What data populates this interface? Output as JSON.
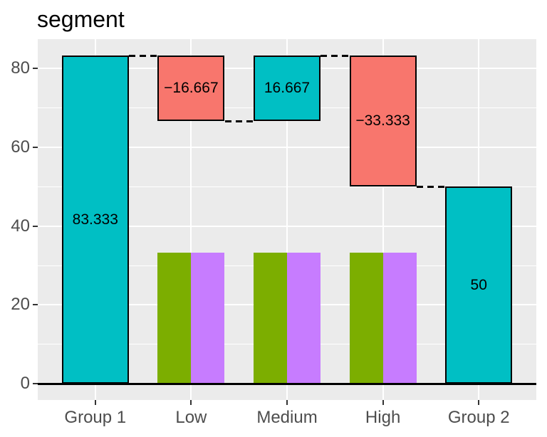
{
  "chart_data": {
    "type": "bar",
    "subtype": "waterfall",
    "title": "segment",
    "xlabel": "",
    "ylabel": "",
    "categories": [
      "Group 1",
      "Low",
      "Medium",
      "High",
      "Group 2"
    ],
    "x_positions": [
      1,
      2,
      3,
      4,
      5
    ],
    "xlim": [
      0.4,
      5.6
    ],
    "ylim": [
      -4.1667,
      87.5
    ],
    "yticks_major": [
      0,
      20,
      40,
      60,
      80
    ],
    "yticks_minor": [
      10,
      30,
      50,
      70
    ],
    "grid": "on",
    "legend": "none",
    "bar_width": 0.7,
    "zero_line": 0,
    "colors": {
      "increase_total": "#00BFC4",
      "decrease": "#F8766D",
      "group_a": "#7CAE00",
      "group_b": "#C77CFF",
      "panel_bg": "#EBEBEB",
      "grid": "#FFFFFF",
      "axis_text": "#4D4D4D",
      "tick": "#333333",
      "bar_border": "#000000",
      "zero_line": "#000000",
      "label_text": "#000000"
    },
    "waterfall_bars": [
      {
        "category": "Group 1",
        "x": 1,
        "from": 0,
        "to": 83.333,
        "value": 83.333,
        "label": "83.333",
        "color_key": "increase_total"
      },
      {
        "category": "Low",
        "x": 2,
        "from": 66.667,
        "to": 83.333,
        "value": -16.667,
        "label": "−16.667",
        "color_key": "decrease"
      },
      {
        "category": "Medium",
        "x": 3,
        "from": 66.667,
        "to": 83.333,
        "value": 16.667,
        "label": "16.667",
        "color_key": "increase_total"
      },
      {
        "category": "High",
        "x": 4,
        "from": 50,
        "to": 83.333,
        "value": -33.333,
        "label": "−33.333",
        "color_key": "decrease"
      },
      {
        "category": "Group 2",
        "x": 5,
        "from": 0,
        "to": 50,
        "value": 50,
        "label": "50",
        "color_key": "increase_total"
      }
    ],
    "dodged_bars": [
      {
        "category": "Low",
        "x": 2,
        "values": [
          33.333,
          33.333
        ],
        "color_keys": [
          "group_a",
          "group_b"
        ]
      },
      {
        "category": "Medium",
        "x": 3,
        "values": [
          33.333,
          33.333
        ],
        "color_keys": [
          "group_a",
          "group_b"
        ]
      },
      {
        "category": "High",
        "x": 4,
        "values": [
          33.333,
          33.333
        ],
        "color_keys": [
          "group_a",
          "group_b"
        ]
      }
    ],
    "connectors": [
      {
        "from_x": 1,
        "to_x": 2,
        "level": 83.333
      },
      {
        "from_x": 2,
        "to_x": 3,
        "level": 66.667
      },
      {
        "from_x": 3,
        "to_x": 4,
        "level": 83.333
      },
      {
        "from_x": 4,
        "to_x": 5,
        "level": 50
      }
    ]
  }
}
